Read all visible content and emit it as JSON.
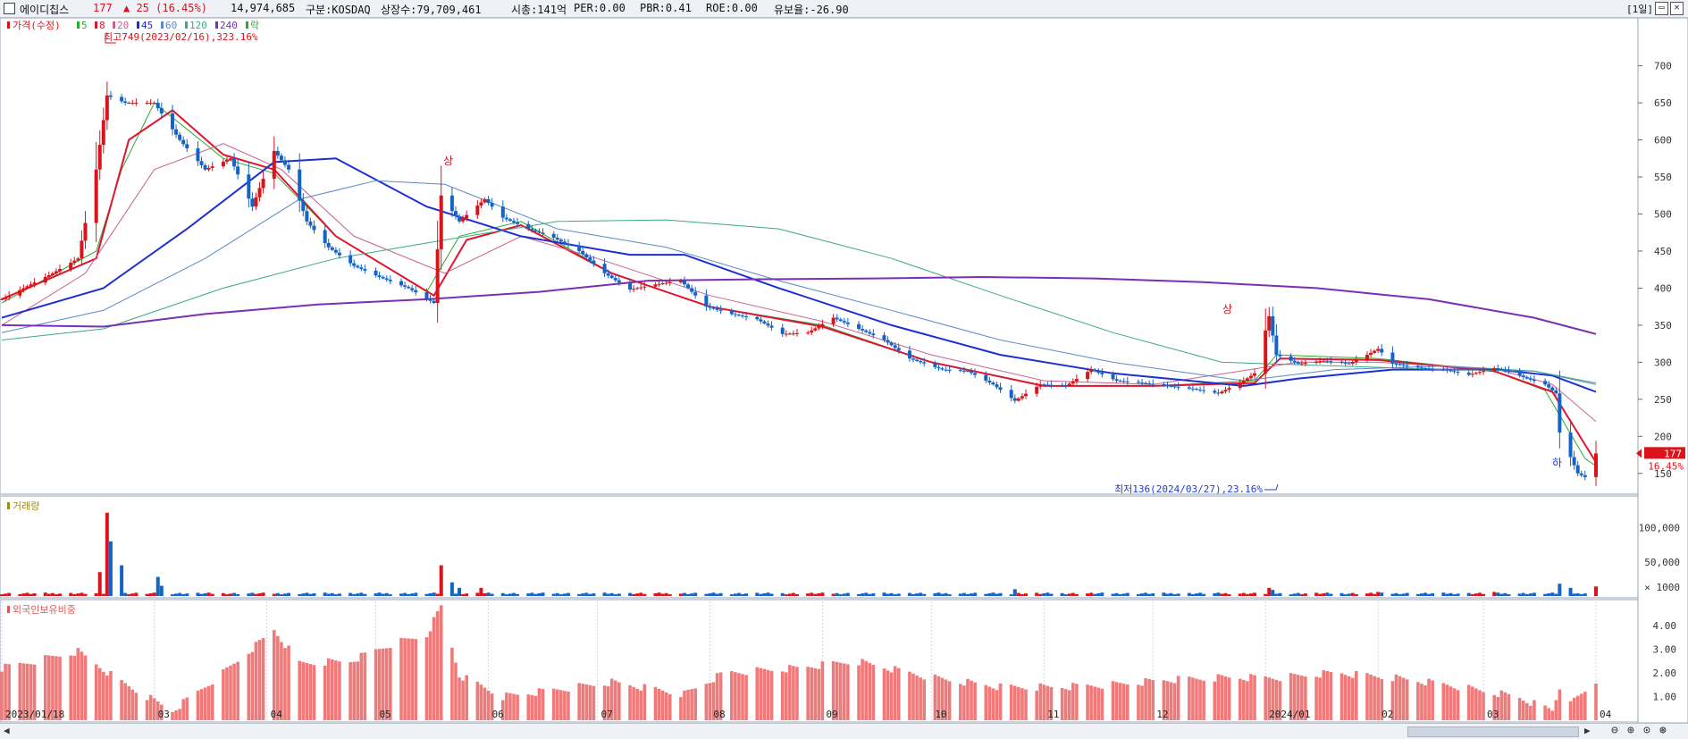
{
  "header": {
    "name": "에이디칩스",
    "price": "177",
    "change": "▲ 25 (16.45%)",
    "volume": "14,974,685",
    "market": "구분:KOSDAQ",
    "shares": "상장수:79,709,461",
    "mcap": "시총:141억",
    "per": "PER:0.00",
    "pbr": "PBR:0.41",
    "roe": "ROE:0.00",
    "reserve": "유보율:-26.90",
    "period": "[1일]",
    "colors": {
      "up": "#d9141a",
      "down": "#1464c8",
      "text": "#111111"
    }
  },
  "legend": {
    "price_label": "가격(수정)",
    "ma": [
      {
        "label": "5",
        "color": "#2fa82f"
      },
      {
        "label": "8",
        "color": "#e0142c"
      },
      {
        "label": "20",
        "color": "#c86090"
      },
      {
        "label": "45",
        "color": "#1e2fd2"
      },
      {
        "label": "60",
        "color": "#5a8ac8"
      },
      {
        "label": "120",
        "color": "#3ca886"
      },
      {
        "label": "240",
        "color": "#7a2fb4"
      }
    ],
    "extra": "락"
  },
  "annotations": {
    "high": "최고749(2023/02/16),323.16%",
    "low": "최저136(2024/03/27),23.16%",
    "upper_limit": "상",
    "lower_limit": "하",
    "last_price": "177",
    "last_pct": "16.45%"
  },
  "volume_panel": {
    "label": "거래량",
    "unit_label": "× 1000"
  },
  "foreign_panel": {
    "label": "외국인보유비중"
  },
  "chart_data": {
    "type": "candlestick",
    "x_start": "2023/01/18",
    "x_end": "2024/04/01",
    "x_tick_labels": [
      "2023/01/18",
      "03",
      "04",
      "05",
      "06",
      "07",
      "08",
      "09",
      "10",
      "11",
      "12",
      "2024/01",
      "02",
      "03",
      "04"
    ],
    "x_tick_dates": [
      "2023-01-18",
      "2023-03-01",
      "2023-04-01",
      "2023-05-01",
      "2023-06-01",
      "2023-07-01",
      "2023-08-01",
      "2023-09-01",
      "2023-10-01",
      "2023-11-01",
      "2023-12-01",
      "2024-01-01",
      "2024-02-01",
      "2024-03-01",
      "2024-04-01"
    ],
    "price_axis": {
      "ticks": [
        150,
        200,
        250,
        300,
        350,
        400,
        450,
        500,
        550,
        600,
        650,
        700
      ],
      "ylim": [
        128,
        755
      ]
    },
    "price_path": [
      [
        "2023-01-18",
        385
      ],
      [
        "2023-02-01",
        420
      ],
      [
        "2023-02-08",
        440
      ],
      [
        "2023-02-13",
        560
      ],
      [
        "2023-02-16",
        660
      ],
      [
        "2023-02-21",
        650
      ],
      [
        "2023-03-01",
        650
      ],
      [
        "2023-03-08",
        600
      ],
      [
        "2023-03-15",
        560
      ],
      [
        "2023-03-22",
        575
      ],
      [
        "2023-03-28",
        510
      ],
      [
        "2023-04-03",
        585
      ],
      [
        "2023-04-07",
        560
      ],
      [
        "2023-04-12",
        490
      ],
      [
        "2023-04-18",
        455
      ],
      [
        "2023-04-25",
        430
      ],
      [
        "2023-05-02",
        415
      ],
      [
        "2023-05-10",
        400
      ],
      [
        "2023-05-17",
        380
      ],
      [
        "2023-05-19",
        525
      ],
      [
        "2023-05-24",
        490
      ],
      [
        "2023-05-31",
        520
      ],
      [
        "2023-06-05",
        495
      ],
      [
        "2023-06-12",
        480
      ],
      [
        "2023-06-19",
        468
      ],
      [
        "2023-06-26",
        450
      ],
      [
        "2023-07-03",
        420
      ],
      [
        "2023-07-10",
        398
      ],
      [
        "2023-07-17",
        405
      ],
      [
        "2023-07-24",
        410
      ],
      [
        "2023-07-31",
        375
      ],
      [
        "2023-08-07",
        365
      ],
      [
        "2023-08-14",
        358
      ],
      [
        "2023-08-21",
        338
      ],
      [
        "2023-08-28",
        340
      ],
      [
        "2023-09-04",
        360
      ],
      [
        "2023-09-11",
        345
      ],
      [
        "2023-09-18",
        330
      ],
      [
        "2023-09-25",
        305
      ],
      [
        "2023-10-04",
        290
      ],
      [
        "2023-10-11",
        288
      ],
      [
        "2023-10-18",
        270
      ],
      [
        "2023-10-24",
        248
      ],
      [
        "2023-10-31",
        270
      ],
      [
        "2023-11-07",
        268
      ],
      [
        "2023-11-14",
        290
      ],
      [
        "2023-11-21",
        275
      ],
      [
        "2023-11-28",
        272
      ],
      [
        "2023-12-05",
        268
      ],
      [
        "2023-12-12",
        264
      ],
      [
        "2023-12-19",
        258
      ],
      [
        "2023-12-26",
        275
      ],
      [
        "2023-12-29",
        285
      ],
      [
        "2024-01-02",
        362
      ],
      [
        "2024-01-04",
        310
      ],
      [
        "2024-01-10",
        298
      ],
      [
        "2024-01-17",
        302
      ],
      [
        "2024-01-24",
        298
      ],
      [
        "2024-01-29",
        310
      ],
      [
        "2024-02-01",
        318
      ],
      [
        "2024-02-05",
        298
      ],
      [
        "2024-02-13",
        292
      ],
      [
        "2024-02-19",
        290
      ],
      [
        "2024-02-26",
        283
      ],
      [
        "2024-03-04",
        292
      ],
      [
        "2024-03-08",
        288
      ],
      [
        "2024-03-13",
        278
      ],
      [
        "2024-03-18",
        270
      ],
      [
        "2024-03-21",
        258
      ],
      [
        "2024-03-22",
        205
      ],
      [
        "2024-03-27",
        150
      ],
      [
        "2024-03-29",
        145
      ],
      [
        "2024-04-01",
        177
      ]
    ],
    "volume_axis": {
      "ticks": [
        50000,
        100000
      ],
      "tick_labels": [
        "50,000",
        "100,000"
      ],
      "ylim": [
        0,
        140000
      ]
    },
    "volume_spikes": [
      [
        "2023-02-14",
        35000
      ],
      [
        "2023-02-16",
        122000
      ],
      [
        "2023-02-17",
        80000
      ],
      [
        "2023-02-20",
        45000
      ],
      [
        "2023-03-02",
        28000
      ],
      [
        "2023-03-03",
        15000
      ],
      [
        "2023-05-19",
        45000
      ],
      [
        "2023-05-22",
        20000
      ],
      [
        "2023-05-24",
        12000
      ],
      [
        "2023-05-30",
        12000
      ],
      [
        "2023-10-24",
        10000
      ],
      [
        "2024-01-02",
        12000
      ],
      [
        "2024-01-03",
        9000
      ],
      [
        "2024-02-01",
        6000
      ],
      [
        "2024-03-04",
        6000
      ],
      [
        "2024-03-22",
        18000
      ],
      [
        "2024-03-25",
        12000
      ],
      [
        "2024-03-27",
        4000
      ],
      [
        "2024-04-01",
        14000
      ]
    ],
    "foreign_axis": {
      "ticks": [
        1,
        2,
        3,
        4
      ],
      "tick_labels": [
        "1.00",
        "2.00",
        "3.00",
        "4.00"
      ],
      "ylim": [
        0,
        4.9
      ]
    },
    "foreign_path": [
      [
        "2023-01-18",
        2.2
      ],
      [
        "2023-02-08",
        2.9
      ],
      [
        "2023-02-20",
        1.6
      ],
      [
        "2023-03-06",
        0.4
      ],
      [
        "2023-03-20",
        2.0
      ],
      [
        "2023-04-03",
        3.8
      ],
      [
        "2023-04-10",
        2.4
      ],
      [
        "2023-04-24",
        2.5
      ],
      [
        "2023-05-05",
        3.2
      ],
      [
        "2023-05-15",
        3.6
      ],
      [
        "2023-05-19",
        4.8
      ],
      [
        "2023-05-24",
        1.9
      ],
      [
        "2023-06-05",
        1.0
      ],
      [
        "2023-06-20",
        1.3
      ],
      [
        "2023-07-05",
        1.6
      ],
      [
        "2023-07-25",
        1.1
      ],
      [
        "2023-08-05",
        2.0
      ],
      [
        "2023-08-25",
        2.2
      ],
      [
        "2023-09-10",
        2.5
      ],
      [
        "2023-10-01",
        1.8
      ],
      [
        "2023-10-20",
        1.4
      ],
      [
        "2023-11-05",
        1.4
      ],
      [
        "2023-11-20",
        1.5
      ],
      [
        "2023-12-05",
        1.7
      ],
      [
        "2023-12-20",
        1.8
      ],
      [
        "2024-01-05",
        1.8
      ],
      [
        "2024-01-20",
        2.0
      ],
      [
        "2024-02-05",
        1.8
      ],
      [
        "2024-02-20",
        1.5
      ],
      [
        "2024-03-10",
        1.0
      ],
      [
        "2024-03-20",
        0.4
      ],
      [
        "2024-03-22",
        1.4
      ],
      [
        "2024-03-26",
        0.8
      ],
      [
        "2024-04-01",
        1.6
      ]
    ],
    "series": [
      {
        "name": "5",
        "color": "#2fa82f",
        "path": [
          [
            "2023-01-18",
            380
          ],
          [
            "2023-02-13",
            450
          ],
          [
            "2023-02-20",
            560
          ],
          [
            "2023-03-01",
            650
          ],
          [
            "2023-03-20",
            575
          ],
          [
            "2023-04-03",
            555
          ],
          [
            "2023-04-20",
            470
          ],
          [
            "2023-05-15",
            395
          ],
          [
            "2023-05-24",
            470
          ],
          [
            "2023-06-10",
            490
          ],
          [
            "2023-07-05",
            420
          ],
          [
            "2023-08-01",
            375
          ],
          [
            "2023-09-01",
            350
          ],
          [
            "2023-10-01",
            300
          ],
          [
            "2023-11-01",
            268
          ],
          [
            "2023-12-01",
            268
          ],
          [
            "2023-12-29",
            275
          ],
          [
            "2024-01-04",
            310
          ],
          [
            "2024-02-01",
            305
          ],
          [
            "2024-03-04",
            288
          ],
          [
            "2024-03-18",
            262
          ],
          [
            "2024-03-29",
            170
          ],
          [
            "2024-04-01",
            160
          ]
        ]
      },
      {
        "name": "8",
        "color": "#e0142c",
        "path": [
          [
            "2023-01-18",
            385
          ],
          [
            "2023-02-13",
            440
          ],
          [
            "2023-02-22",
            600
          ],
          [
            "2023-03-06",
            640
          ],
          [
            "2023-03-20",
            580
          ],
          [
            "2023-04-03",
            560
          ],
          [
            "2023-04-20",
            470
          ],
          [
            "2023-05-17",
            390
          ],
          [
            "2023-05-26",
            465
          ],
          [
            "2023-06-10",
            485
          ],
          [
            "2023-07-05",
            420
          ],
          [
            "2023-08-01",
            375
          ],
          [
            "2023-09-01",
            348
          ],
          [
            "2023-10-01",
            300
          ],
          [
            "2023-11-01",
            268
          ],
          [
            "2023-12-01",
            268
          ],
          [
            "2023-12-29",
            272
          ],
          [
            "2024-01-05",
            305
          ],
          [
            "2024-02-01",
            303
          ],
          [
            "2024-03-04",
            288
          ],
          [
            "2024-03-20",
            260
          ],
          [
            "2024-04-01",
            165
          ]
        ]
      },
      {
        "name": "20",
        "color": "#c86090",
        "path": [
          [
            "2023-01-18",
            350
          ],
          [
            "2023-02-10",
            420
          ],
          [
            "2023-03-01",
            560
          ],
          [
            "2023-03-20",
            595
          ],
          [
            "2023-04-05",
            560
          ],
          [
            "2023-04-25",
            470
          ],
          [
            "2023-05-20",
            420
          ],
          [
            "2023-06-10",
            470
          ],
          [
            "2023-07-01",
            440
          ],
          [
            "2023-08-01",
            390
          ],
          [
            "2023-09-01",
            355
          ],
          [
            "2023-10-01",
            310
          ],
          [
            "2023-11-01",
            275
          ],
          [
            "2023-12-01",
            270
          ],
          [
            "2024-01-10",
            300
          ],
          [
            "2024-02-01",
            300
          ],
          [
            "2024-03-05",
            290
          ],
          [
            "2024-03-20",
            270
          ],
          [
            "2024-04-01",
            220
          ]
        ]
      },
      {
        "name": "45",
        "color": "#1e2fd2",
        "path": [
          [
            "2023-01-18",
            360
          ],
          [
            "2023-02-15",
            400
          ],
          [
            "2023-03-10",
            480
          ],
          [
            "2023-04-03",
            570
          ],
          [
            "2023-04-20",
            575
          ],
          [
            "2023-05-15",
            510
          ],
          [
            "2023-06-10",
            470
          ],
          [
            "2023-07-10",
            445
          ],
          [
            "2023-07-25",
            445
          ],
          [
            "2023-08-20",
            400
          ],
          [
            "2023-09-20",
            350
          ],
          [
            "2023-10-20",
            310
          ],
          [
            "2023-11-20",
            285
          ],
          [
            "2023-12-26",
            268
          ],
          [
            "2024-01-10",
            278
          ],
          [
            "2024-02-05",
            290
          ],
          [
            "2024-03-05",
            290
          ],
          [
            "2024-03-20",
            282
          ],
          [
            "2024-04-01",
            260
          ]
        ]
      },
      {
        "name": "60",
        "color": "#5a8ac8",
        "path": [
          [
            "2023-01-18",
            340
          ],
          [
            "2023-02-15",
            370
          ],
          [
            "2023-03-15",
            440
          ],
          [
            "2023-04-10",
            520
          ],
          [
            "2023-05-01",
            545
          ],
          [
            "2023-05-20",
            540
          ],
          [
            "2023-06-20",
            480
          ],
          [
            "2023-07-20",
            455
          ],
          [
            "2023-08-20",
            410
          ],
          [
            "2023-09-20",
            370
          ],
          [
            "2023-10-20",
            330
          ],
          [
            "2023-11-20",
            300
          ],
          [
            "2023-12-26",
            275
          ],
          [
            "2024-01-20",
            290
          ],
          [
            "2024-02-20",
            295
          ],
          [
            "2024-03-15",
            288
          ],
          [
            "2024-04-01",
            270
          ]
        ]
      },
      {
        "name": "120",
        "color": "#3ca886",
        "path": [
          [
            "2023-01-18",
            330
          ],
          [
            "2023-02-15",
            345
          ],
          [
            "2023-03-20",
            400
          ],
          [
            "2023-04-20",
            440
          ],
          [
            "2023-05-20",
            465
          ],
          [
            "2023-06-20",
            490
          ],
          [
            "2023-07-20",
            492
          ],
          [
            "2023-08-20",
            480
          ],
          [
            "2023-09-20",
            440
          ],
          [
            "2023-10-20",
            390
          ],
          [
            "2023-11-20",
            340
          ],
          [
            "2023-12-20",
            300
          ],
          [
            "2024-01-20",
            295
          ],
          [
            "2024-02-20",
            290
          ],
          [
            "2024-03-15",
            288
          ],
          [
            "2024-04-01",
            272
          ]
        ]
      },
      {
        "name": "240",
        "color": "#7a2fb4",
        "path": [
          [
            "2023-01-18",
            350
          ],
          [
            "2023-02-15",
            348
          ],
          [
            "2023-03-15",
            365
          ],
          [
            "2023-04-15",
            378
          ],
          [
            "2023-05-15",
            385
          ],
          [
            "2023-06-15",
            395
          ],
          [
            "2023-07-15",
            410
          ],
          [
            "2023-08-15",
            412
          ],
          [
            "2023-09-15",
            413
          ],
          [
            "2023-10-15",
            415
          ],
          [
            "2023-11-15",
            413
          ],
          [
            "2023-12-15",
            408
          ],
          [
            "2024-01-15",
            400
          ],
          [
            "2024-02-15",
            385
          ],
          [
            "2024-03-15",
            360
          ],
          [
            "2024-04-01",
            338
          ]
        ]
      }
    ]
  }
}
